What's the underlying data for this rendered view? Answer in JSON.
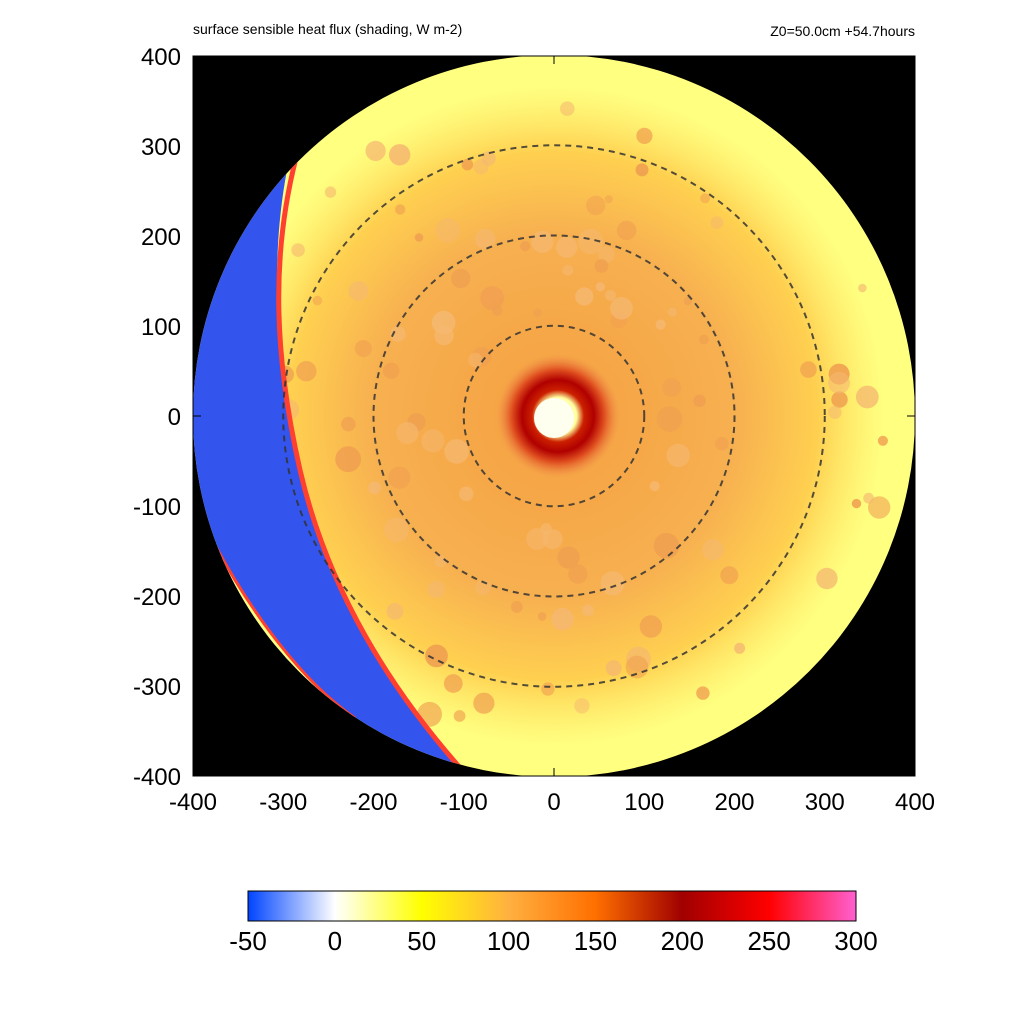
{
  "chart_data": {
    "type": "heatmap",
    "title": "surface sensible heat flux (shading, W m-2)",
    "subtitle": "Z0=50.0cm  +54.7hours",
    "xlim": [
      -400,
      400
    ],
    "ylim": [
      -400,
      400
    ],
    "x_ticks": [
      "-400",
      "-300",
      "-200",
      "-100",
      "0",
      "100",
      "200",
      "300",
      "400"
    ],
    "y_ticks": [
      "400",
      "300",
      "200",
      "100",
      "0",
      "-100",
      "-200",
      "-300",
      "-400"
    ],
    "domain_radius": 400,
    "contour_radii": [
      100,
      200,
      300
    ],
    "colorbar": {
      "ticks": [
        "-50",
        "0",
        "50",
        "100",
        "150",
        "200",
        "250",
        "300"
      ],
      "range": [
        -50,
        300
      ],
      "colors": [
        "#0044ff",
        "#ffffff",
        "#ffff00",
        "#ffb040",
        "#ff7000",
        "#a00000",
        "#ff0000",
        "#ff60d0"
      ]
    },
    "colors": {
      "outside": "#000000",
      "ambient": "#ffff80",
      "cold_sector": "#3355ee",
      "front": "#ff4030",
      "core": "#aa0000",
      "eye": "#fffff0"
    }
  }
}
